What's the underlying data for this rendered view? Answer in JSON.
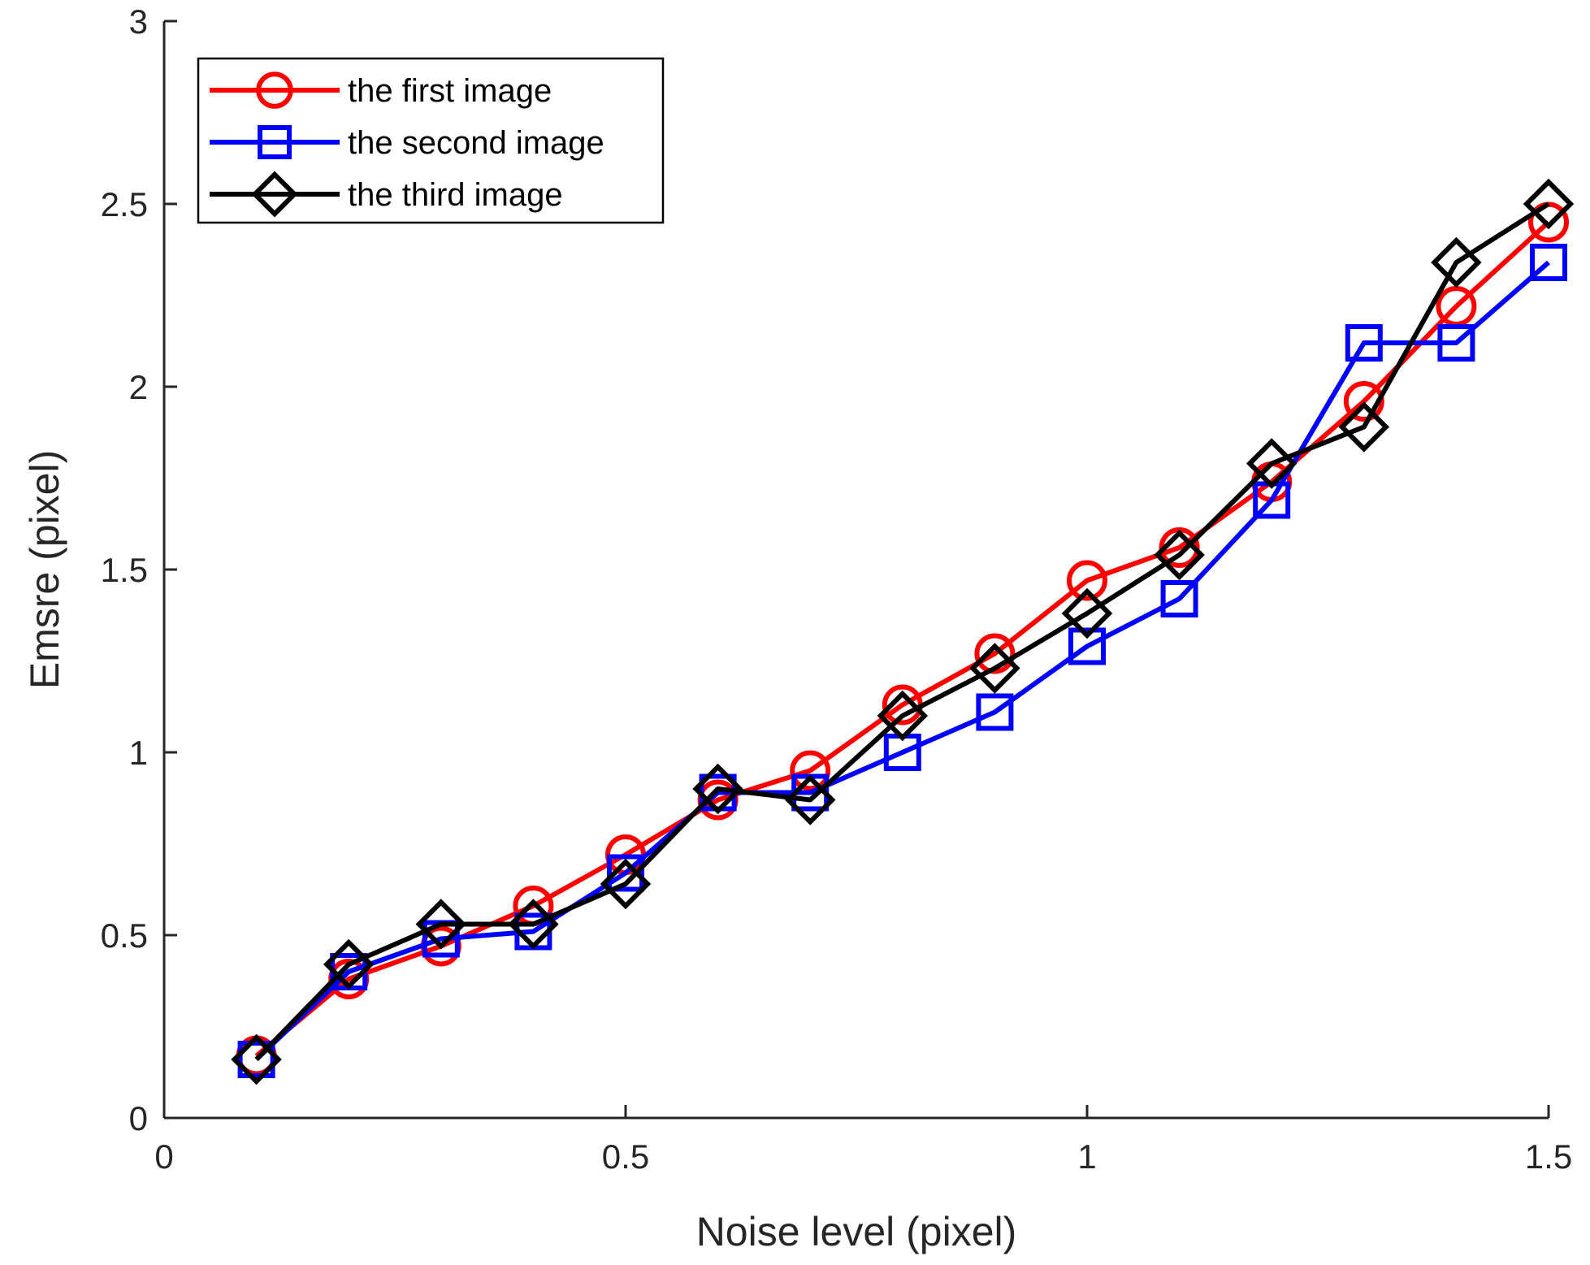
{
  "chart_data": {
    "type": "line",
    "title": "",
    "xlabel": "Noise level (pixel)",
    "ylabel": "Emsre (pixel)",
    "xlim": [
      0,
      1.5
    ],
    "ylim": [
      0,
      3
    ],
    "xticks": [
      0,
      0.5,
      1,
      1.5
    ],
    "yticks": [
      0,
      0.5,
      1,
      1.5,
      2,
      2.5,
      3
    ],
    "xtick_labels": [
      "0",
      "0.5",
      "1",
      "1.5"
    ],
    "ytick_labels": [
      "0",
      "0.5",
      "1",
      "1.5",
      "2",
      "2.5",
      "3"
    ],
    "grid": false,
    "legend_position": "top-left",
    "x": [
      0.1,
      0.2,
      0.3,
      0.4,
      0.5,
      0.6,
      0.7,
      0.8,
      0.9,
      1.0,
      1.1,
      1.2,
      1.3,
      1.4,
      1.5
    ],
    "series": [
      {
        "name": "the first image",
        "color": "#ff0000",
        "marker": "circle",
        "values": [
          0.17,
          0.38,
          0.47,
          0.58,
          0.72,
          0.87,
          0.95,
          1.13,
          1.27,
          1.47,
          1.56,
          1.74,
          1.96,
          2.22,
          2.45
        ]
      },
      {
        "name": "the second image",
        "color": "#0000ff",
        "marker": "square",
        "values": [
          0.16,
          0.4,
          0.49,
          0.51,
          0.67,
          0.89,
          0.89,
          1.0,
          1.11,
          1.29,
          1.42,
          1.69,
          2.12,
          2.12,
          2.34
        ]
      },
      {
        "name": "the third image",
        "color": "#000000",
        "marker": "diamond",
        "values": [
          0.16,
          0.42,
          0.53,
          0.53,
          0.64,
          0.9,
          0.87,
          1.1,
          1.23,
          1.38,
          1.54,
          1.79,
          1.89,
          2.34,
          2.5
        ]
      }
    ]
  }
}
